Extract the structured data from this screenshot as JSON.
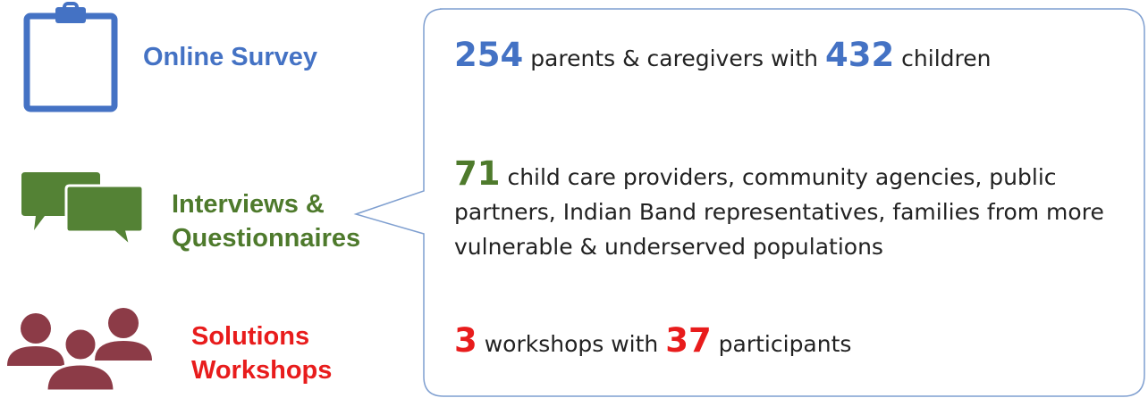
{
  "methods": [
    {
      "label": [
        "Online Survey"
      ],
      "color": "#4472c4",
      "summary": [
        {
          "number": 254
        },
        {
          "text": "parents & caregivers with"
        },
        {
          "number": 432
        },
        {
          "text": "children"
        }
      ]
    },
    {
      "label": [
        "Interviews &",
        "Questionnaires"
      ],
      "color": "#4e7a2c",
      "summary": [
        {
          "number": 71
        },
        {
          "text": "child care providers, community agencies, public partners, Indian Band representatives, families from more vulnerable & underserved populations"
        }
      ]
    },
    {
      "label": [
        "Solutions",
        "Workshops"
      ],
      "color": "#e81c1c",
      "summary": [
        {
          "number": 3
        },
        {
          "text": "workshops with"
        },
        {
          "number": 37
        },
        {
          "text": "participants"
        }
      ]
    }
  ]
}
